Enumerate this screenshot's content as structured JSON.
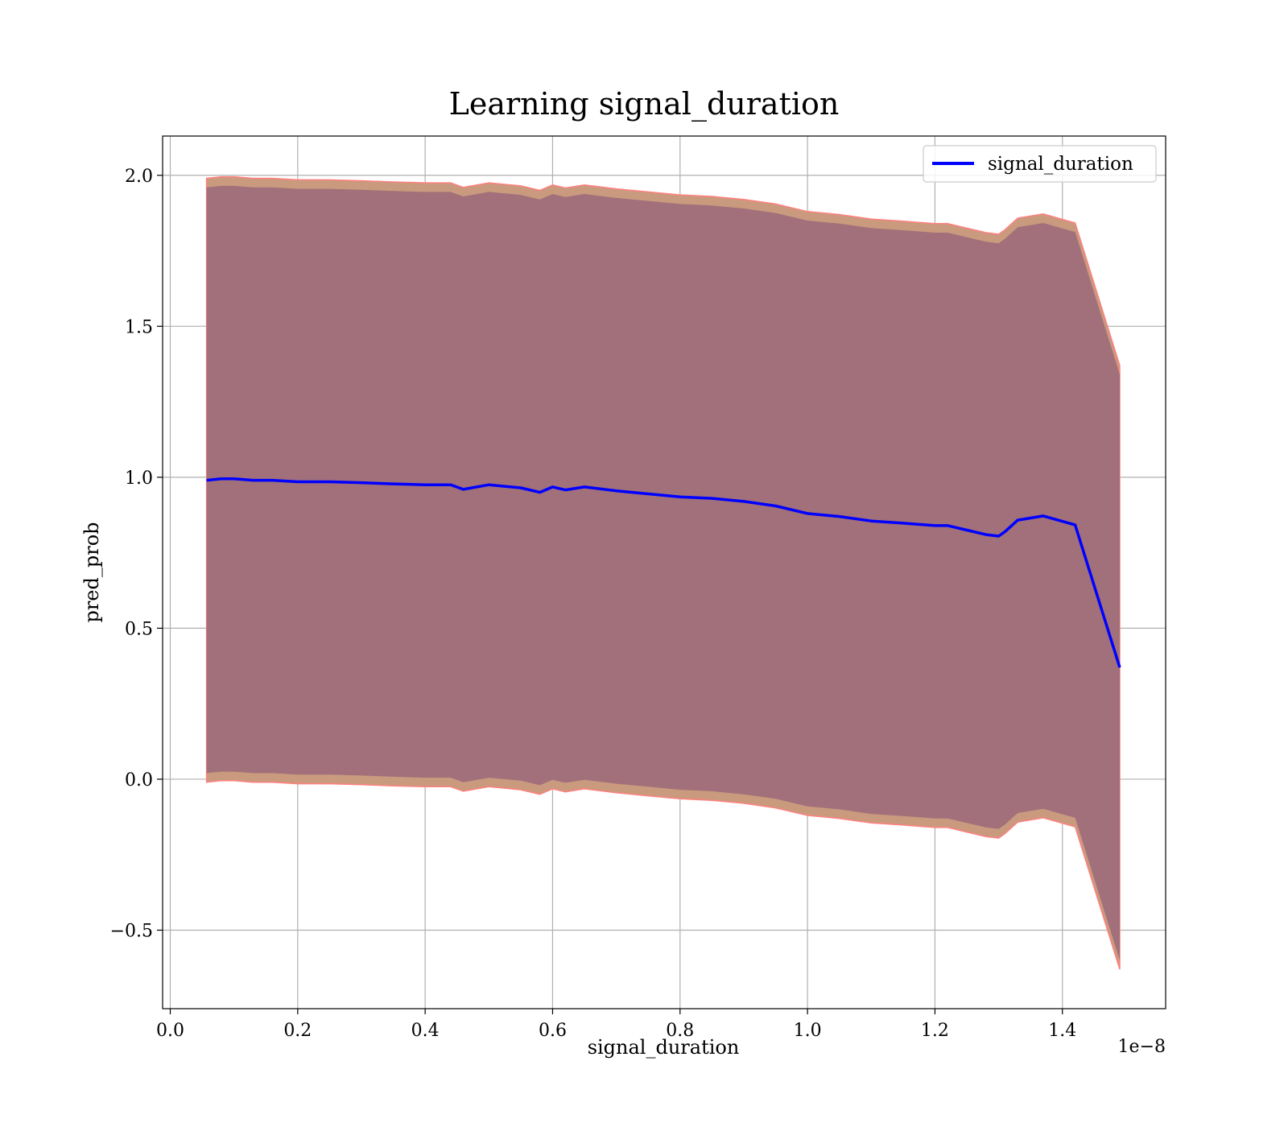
{
  "chart_data": {
    "type": "line",
    "title": "Learning signal_duration",
    "xlabel": "signal_duration",
    "ylabel": "pred_prob",
    "x_offset_label": "1e−8",
    "xlim": [
      -0.012,
      1.562
    ],
    "ylim": [
      -0.76,
      2.13
    ],
    "grid": true,
    "legend_position": "top-right",
    "x_ticks": [
      {
        "value": 0.0,
        "label": "0.0"
      },
      {
        "value": 0.2,
        "label": "0.2"
      },
      {
        "value": 0.4,
        "label": "0.4"
      },
      {
        "value": 0.6,
        "label": "0.6"
      },
      {
        "value": 0.8,
        "label": "0.8"
      },
      {
        "value": 1.0,
        "label": "1.0"
      },
      {
        "value": 1.2,
        "label": "1.2"
      },
      {
        "value": 1.4,
        "label": "1.4"
      }
    ],
    "y_ticks": [
      {
        "value": -0.5,
        "label": "−0.5"
      },
      {
        "value": 0.0,
        "label": "0.0"
      },
      {
        "value": 0.5,
        "label": "0.5"
      },
      {
        "value": 1.0,
        "label": "1.0"
      },
      {
        "value": 1.5,
        "label": "1.5"
      },
      {
        "value": 2.0,
        "label": "2.0"
      }
    ],
    "colors": {
      "line": "#0000ff",
      "band_inner": "#a1707a",
      "band_outer": "#c99a7e",
      "band_edge": "#ff8080"
    },
    "series": [
      {
        "name": "signal_duration",
        "x": [
          0.057,
          0.08,
          0.1,
          0.13,
          0.16,
          0.2,
          0.25,
          0.3,
          0.35,
          0.4,
          0.44,
          0.46,
          0.5,
          0.55,
          0.58,
          0.6,
          0.62,
          0.65,
          0.7,
          0.75,
          0.8,
          0.85,
          0.9,
          0.95,
          1.0,
          1.05,
          1.1,
          1.15,
          1.2,
          1.22,
          1.25,
          1.28,
          1.3,
          1.31,
          1.33,
          1.37,
          1.42,
          1.49
        ],
        "y": [
          0.99,
          0.995,
          0.995,
          0.99,
          0.99,
          0.985,
          0.985,
          0.982,
          0.978,
          0.975,
          0.975,
          0.96,
          0.975,
          0.965,
          0.95,
          0.968,
          0.958,
          0.968,
          0.955,
          0.945,
          0.935,
          0.93,
          0.92,
          0.905,
          0.88,
          0.87,
          0.855,
          0.848,
          0.84,
          0.84,
          0.825,
          0.81,
          0.805,
          0.82,
          0.858,
          0.872,
          0.842,
          0.37
        ],
        "band_outer_upper": [
          1.99,
          1.995,
          1.995,
          1.99,
          1.99,
          1.985,
          1.985,
          1.982,
          1.978,
          1.975,
          1.975,
          1.96,
          1.975,
          1.965,
          1.95,
          1.968,
          1.958,
          1.968,
          1.955,
          1.945,
          1.935,
          1.93,
          1.92,
          1.905,
          1.88,
          1.87,
          1.855,
          1.848,
          1.84,
          1.84,
          1.825,
          1.81,
          1.805,
          1.82,
          1.858,
          1.872,
          1.842,
          1.37
        ],
        "band_inner_upper": [
          1.96,
          1.965,
          1.965,
          1.96,
          1.96,
          1.955,
          1.955,
          1.952,
          1.948,
          1.945,
          1.945,
          1.93,
          1.945,
          1.935,
          1.92,
          1.938,
          1.928,
          1.938,
          1.925,
          1.915,
          1.905,
          1.9,
          1.89,
          1.875,
          1.85,
          1.84,
          1.825,
          1.818,
          1.81,
          1.81,
          1.795,
          1.78,
          1.775,
          1.79,
          1.828,
          1.842,
          1.812,
          1.34
        ],
        "band_inner_lower": [
          0.02,
          0.025,
          0.025,
          0.02,
          0.02,
          0.015,
          0.015,
          0.012,
          0.008,
          0.005,
          0.005,
          -0.01,
          0.005,
          -0.005,
          -0.02,
          -0.002,
          -0.012,
          -0.002,
          -0.015,
          -0.025,
          -0.035,
          -0.04,
          -0.05,
          -0.065,
          -0.09,
          -0.1,
          -0.115,
          -0.122,
          -0.13,
          -0.13,
          -0.145,
          -0.16,
          -0.165,
          -0.15,
          -0.112,
          -0.098,
          -0.128,
          -0.6
        ],
        "band_outer_lower": [
          -0.01,
          -0.005,
          -0.005,
          -0.01,
          -0.01,
          -0.015,
          -0.015,
          -0.018,
          -0.022,
          -0.025,
          -0.025,
          -0.04,
          -0.025,
          -0.035,
          -0.05,
          -0.032,
          -0.042,
          -0.032,
          -0.045,
          -0.055,
          -0.065,
          -0.07,
          -0.08,
          -0.095,
          -0.12,
          -0.13,
          -0.145,
          -0.152,
          -0.16,
          -0.16,
          -0.175,
          -0.19,
          -0.195,
          -0.18,
          -0.142,
          -0.128,
          -0.158,
          -0.63
        ]
      }
    ]
  }
}
